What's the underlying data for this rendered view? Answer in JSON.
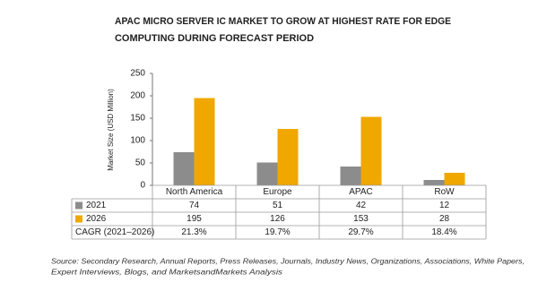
{
  "chart_data": {
    "type": "bar",
    "title_lines": [
      "APAC MICRO SERVER IC MARKET TO GROW AT HIGHEST RATE FOR EDGE",
      "COMPUTING DURING FORECAST PERIOD"
    ],
    "y_label": "Market Size (USD Million)",
    "categories": [
      "North America",
      "Europe",
      "APAC",
      "RoW"
    ],
    "series": [
      {
        "name": "2021",
        "color": "#8c8c8c",
        "values": [
          74,
          51,
          42,
          12
        ]
      },
      {
        "name": "2026",
        "color": "#f0a800",
        "values": [
          195,
          126,
          153,
          28
        ]
      }
    ],
    "cagr": {
      "label": "CAGR (2021–2026)",
      "values": [
        21.3,
        19.7,
        29.7,
        18.4
      ],
      "value_labels": [
        "21.3%",
        "19.7%",
        "29.7%",
        "18.4%"
      ]
    },
    "ylim": [
      0,
      250
    ],
    "yticks": [
      0,
      50,
      100,
      150,
      200,
      250
    ],
    "source_lines": [
      "Source: Secondary Research, Annual Reports, Press Releases, Journals, Industry News, Organizations, Associations, White Papers,",
      "Expert Interviews, Blogs, and MarketsandMarkets Analysis"
    ]
  }
}
